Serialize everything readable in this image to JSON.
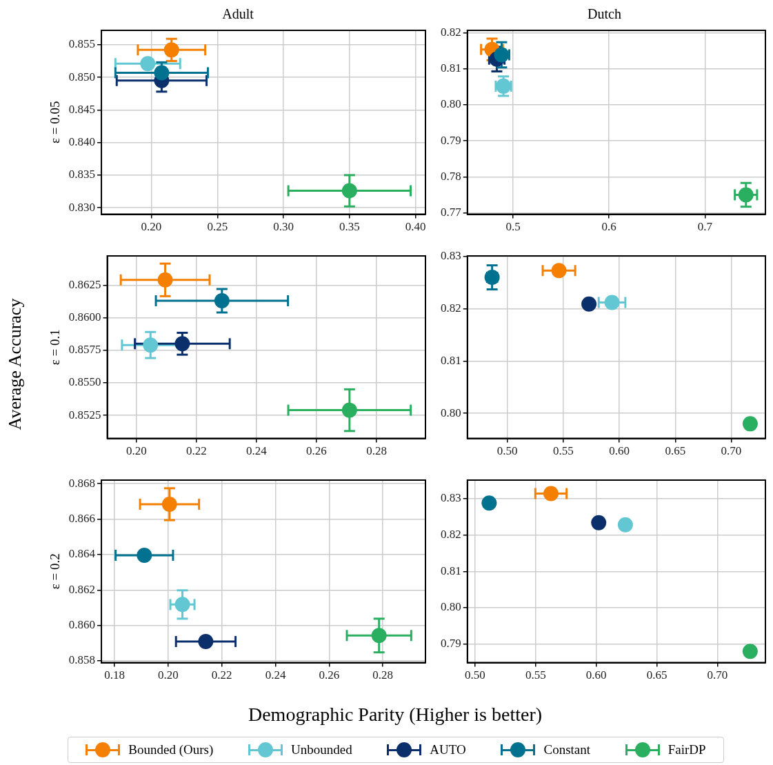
{
  "chart_data": [
    {
      "type": "scatter",
      "title": "Adult",
      "ylabel": "ε = 0.05",
      "annotations": [
        "Average Accuracy",
        "Demographic Parity (Higher is better)"
      ],
      "legend": "bottom",
      "grid": true,
      "marker": "circle",
      "xlim": [
        0.1622,
        0.4075
      ],
      "xticks": [
        {
          "value": 0.2,
          "label": "0.20"
        },
        0.25,
        {
          "value": 0.3,
          "label": "0.30"
        },
        0.35,
        {
          "value": 0.4,
          "label": "0.40"
        }
      ],
      "ylim": [
        0.829,
        0.8572
      ],
      "yticks": [
        {
          "value": 0.83,
          "label": "0.830"
        },
        0.835,
        {
          "value": 0.84,
          "label": "0.840"
        },
        0.845,
        {
          "value": 0.85,
          "label": "0.850"
        },
        0.855
      ],
      "series": [
        {
          "name": "Bounded (Ours)",
          "color": "#f57f00",
          "x": [
            0.2153
          ],
          "values": [
            0.8542
          ],
          "errors": [
            0.0017
          ],
          "xerrors": [
            0.0255
          ]
        },
        {
          "name": "Unbounded",
          "color": "#62c7d3",
          "x": [
            0.1973
          ],
          "values": [
            0.8521
          ],
          "errors": [
            0.0005
          ],
          "xerrors": [
            0.0245
          ]
        },
        {
          "name": "AUTO",
          "color": "#0a2f6b",
          "x": [
            0.2078
          ],
          "values": [
            0.8495
          ],
          "errors": [
            0.0017
          ],
          "xerrors": [
            0.034
          ]
        },
        {
          "name": "Constant",
          "color": "#00718f",
          "x": [
            0.2078
          ],
          "values": [
            0.8507
          ],
          "errors": [
            0.0016
          ],
          "xerrors": [
            0.035
          ]
        },
        {
          "name": "FairDP",
          "color": "#2aae5f",
          "x": [
            0.35
          ],
          "values": [
            0.8326
          ],
          "errors": [
            0.0024
          ],
          "xerrors": [
            0.0463
          ]
        }
      ]
    },
    {
      "type": "scatter",
      "title": "Dutch",
      "grid": true,
      "marker": "circle",
      "xlim": [
        0.4523,
        0.763
      ],
      "xticks": [
        0.5,
        0.6,
        0.7
      ],
      "ylim": [
        0.7696,
        0.8207
      ],
      "yticks": [
        0.77,
        0.78,
        0.79,
        {
          "value": 0.8,
          "label": "0.80"
        },
        0.81,
        0.82
      ],
      "series": [
        {
          "color": "#f57f00",
          "x": [
            0.478
          ],
          "values": [
            0.8154
          ],
          "errors": [
            0.003
          ],
          "xerrors": [
            0.0114
          ]
        },
        {
          "color": "#62c7d3",
          "x": [
            0.4899
          ],
          "values": [
            0.8052
          ],
          "errors": [
            0.0027
          ],
          "xerrors": [
            0.008
          ]
        },
        {
          "color": "#0a2f6b",
          "x": [
            0.483
          ],
          "values": [
            0.8127
          ],
          "errors": [
            0.0034
          ],
          "xerrors": [
            0.008
          ]
        },
        {
          "color": "#00718f",
          "x": [
            0.488
          ],
          "values": [
            0.8139
          ],
          "errors": [
            0.0035
          ],
          "xerrors": [
            0.008
          ]
        },
        {
          "color": "#2aae5f",
          "x": [
            0.7427
          ],
          "values": [
            0.775
          ],
          "errors": [
            0.0033
          ],
          "xerrors": [
            0.0116
          ]
        }
      ]
    },
    {
      "type": "scatter",
      "ylabel": "ε = 0.1",
      "grid": true,
      "marker": "circle",
      "xlim": [
        0.1903,
        0.2963
      ],
      "xticks": [
        {
          "value": 0.2,
          "label": "0.20"
        },
        0.22,
        0.24,
        0.26,
        0.28
      ],
      "ylim": [
        0.85073,
        0.86474
      ],
      "yticks": [
        0.8525,
        {
          "value": 0.855,
          "label": "0.8550"
        },
        0.8575,
        {
          "value": 0.86,
          "label": "0.8600"
        },
        0.8625
      ],
      "series": [
        {
          "color": "#f57f00",
          "x": [
            0.2096
          ],
          "values": [
            0.8629
          ],
          "errors": [
            0.00125
          ],
          "xerrors": [
            0.0148
          ]
        },
        {
          "color": "#62c7d3",
          "x": [
            0.2047
          ],
          "values": [
            0.8579
          ],
          "errors": [
            0.001
          ],
          "xerrors": [
            0.0095
          ]
        },
        {
          "color": "#0a2f6b",
          "x": [
            0.2153
          ],
          "values": [
            0.858
          ],
          "errors": [
            0.00084
          ],
          "xerrors": [
            0.0158
          ]
        },
        {
          "color": "#00718f",
          "x": [
            0.2285
          ],
          "values": [
            0.8613
          ],
          "errors": [
            0.0009
          ],
          "xerrors": [
            0.022
          ]
        },
        {
          "color": "#2aae5f",
          "x": [
            0.271
          ],
          "values": [
            0.8529
          ],
          "errors": [
            0.0016
          ],
          "xerrors": [
            0.0204
          ]
        }
      ]
    },
    {
      "type": "scatter",
      "grid": true,
      "marker": "circle",
      "xlim": [
        0.4643,
        0.7305
      ],
      "xticks": [
        {
          "value": 0.5,
          "label": "0.50"
        },
        0.55,
        {
          "value": 0.6,
          "label": "0.60"
        },
        0.65,
        {
          "value": 0.7,
          "label": "0.70"
        }
      ],
      "ylim": [
        0.7952,
        0.8301
      ],
      "yticks": [
        {
          "value": 0.8,
          "label": "0.80"
        },
        0.81,
        0.82,
        0.83
      ],
      "series": [
        {
          "color": "#f57f00",
          "x": [
            0.5461
          ],
          "values": [
            0.8273
          ],
          "errors": [
            null
          ],
          "xerrors": [
            0.0145
          ]
        },
        {
          "color": "#62c7d3",
          "x": [
            0.5935
          ],
          "values": [
            0.8212
          ],
          "errors": [
            null
          ],
          "xerrors": [
            0.0119
          ]
        },
        {
          "color": "#0a2f6b",
          "x": [
            0.5729
          ],
          "values": [
            0.8209
          ],
          "errors": [
            null
          ],
          "xerrors": [
            null
          ]
        },
        {
          "color": "#00718f",
          "x": [
            0.4864
          ],
          "values": [
            0.826
          ],
          "errors": [
            0.0023
          ],
          "xerrors": [
            0.0045
          ]
        },
        {
          "color": "#2aae5f",
          "x": [
            0.7169
          ],
          "values": [
            0.798
          ],
          "errors": [
            null
          ],
          "xerrors": [
            null
          ]
        }
      ]
    },
    {
      "type": "scatter",
      "ylabel": "ε = 0.2",
      "grid": true,
      "marker": "circle",
      "xlim": [
        0.1751,
        0.2959
      ],
      "xticks": [
        0.18,
        {
          "value": 0.2,
          "label": "0.20"
        },
        0.22,
        0.24,
        0.26,
        0.28
      ],
      "ylim": [
        0.8579,
        0.8682
      ],
      "yticks": [
        0.858,
        {
          "value": 0.86,
          "label": "0.860"
        },
        0.862,
        0.864,
        0.866,
        0.868
      ],
      "series": [
        {
          "color": "#f57f00",
          "x": [
            0.2005
          ],
          "values": [
            0.86684
          ],
          "errors": [
            0.0009
          ],
          "xerrors": [
            0.011
          ]
        },
        {
          "color": "#62c7d3",
          "x": [
            0.2053
          ],
          "values": [
            0.86118
          ],
          "errors": [
            0.0008
          ],
          "xerrors": [
            0.0045
          ]
        },
        {
          "color": "#0a2f6b",
          "x": [
            0.214
          ],
          "values": [
            0.85909
          ],
          "errors": [
            null
          ],
          "xerrors": [
            0.0111
          ]
        },
        {
          "color": "#00718f",
          "x": [
            0.1911
          ],
          "values": [
            0.86396
          ],
          "errors": [
            null
          ],
          "xerrors": [
            0.0107
          ]
        },
        {
          "color": "#2aae5f",
          "x": [
            0.2786
          ],
          "values": [
            0.85943
          ],
          "errors": [
            0.00095
          ],
          "xerrors": [
            0.012
          ]
        }
      ]
    },
    {
      "type": "scatter",
      "grid": true,
      "marker": "circle",
      "xlim": [
        0.4936,
        0.7396
      ],
      "xticks": [
        {
          "value": 0.5,
          "label": "0.50"
        },
        0.55,
        {
          "value": 0.6,
          "label": "0.60"
        },
        0.65,
        {
          "value": 0.7,
          "label": "0.70"
        }
      ],
      "ylim": [
        0.7849,
        0.8351
      ],
      "yticks": [
        0.79,
        {
          "value": 0.8,
          "label": "0.80"
        },
        0.81,
        0.82,
        0.83
      ],
      "series": [
        {
          "color": "#f57f00",
          "x": [
            0.5626
          ],
          "values": [
            0.8314
          ],
          "errors": [
            null
          ],
          "xerrors": [
            0.0129
          ]
        },
        {
          "color": "#62c7d3",
          "x": [
            0.624
          ],
          "values": [
            0.8228
          ],
          "errors": [
            null
          ],
          "xerrors": [
            null
          ]
        },
        {
          "color": "#0a2f6b",
          "x": [
            0.602
          ],
          "values": [
            0.8234
          ],
          "errors": [
            null
          ],
          "xerrors": [
            null
          ]
        },
        {
          "color": "#00718f",
          "x": [
            0.5116
          ],
          "values": [
            0.8288
          ],
          "errors": [
            null
          ],
          "xerrors": [
            null
          ]
        },
        {
          "color": "#2aae5f",
          "x": [
            0.727
          ],
          "values": [
            0.788
          ],
          "errors": [
            null
          ],
          "xerrors": [
            null
          ]
        }
      ]
    }
  ]
}
